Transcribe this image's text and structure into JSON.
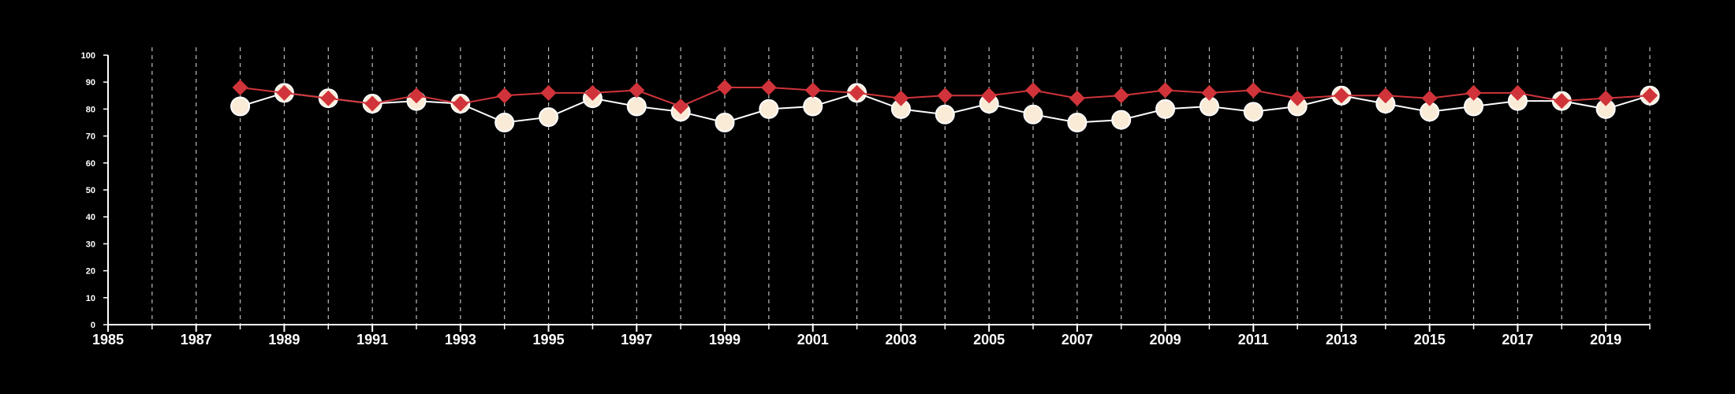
{
  "chart_data": {
    "type": "line",
    "title": "",
    "xlabel": "",
    "ylabel": "",
    "xlim": [
      1985,
      2020
    ],
    "ylim": [
      0,
      100
    ],
    "x_ticks": [
      1985,
      1987,
      1989,
      1991,
      1993,
      1995,
      1997,
      1999,
      2001,
      2003,
      2005,
      2007,
      2009,
      2011,
      2013,
      2015,
      2017,
      2019
    ],
    "y_ticks": [
      0,
      10,
      20,
      30,
      40,
      50,
      60,
      70,
      80,
      90,
      100
    ],
    "grid": "vertical dashed lines at every year",
    "legend": "none",
    "background": "#000000",
    "series": [
      {
        "color": "#d0343a",
        "marker": "diamond",
        "x": [
          1988,
          1989,
          1990,
          1991,
          1992,
          1993,
          1994,
          1995,
          1996,
          1997,
          1998,
          1999,
          2000,
          2001,
          2002,
          2003,
          2004,
          2005,
          2006,
          2007,
          2008,
          2009,
          2010,
          2011,
          2012,
          2013,
          2014,
          2015,
          2016,
          2017,
          2018,
          2019,
          2020
        ],
        "values": [
          88,
          86,
          84,
          82,
          85,
          82,
          85,
          86,
          86,
          87,
          81,
          88,
          88,
          87,
          86,
          84,
          85,
          85,
          87,
          84,
          85,
          87,
          86,
          87,
          84,
          85,
          85,
          84,
          86,
          86,
          83,
          84,
          85
        ]
      },
      {
        "color": "#faebd7",
        "marker": "circle",
        "x": [
          1988,
          1989,
          1990,
          1991,
          1992,
          1993,
          1994,
          1995,
          1996,
          1997,
          1998,
          1999,
          2000,
          2001,
          2002,
          2003,
          2004,
          2005,
          2006,
          2007,
          2008,
          2009,
          2010,
          2011,
          2012,
          2013,
          2014,
          2015,
          2016,
          2017,
          2018,
          2019,
          2020
        ],
        "values": [
          81,
          86,
          84,
          82,
          83,
          82,
          75,
          77,
          84,
          81,
          79,
          75,
          80,
          81,
          86,
          80,
          78,
          82,
          78,
          75,
          76,
          80,
          81,
          79,
          81,
          85,
          82,
          79,
          81,
          83,
          83,
          80,
          85
        ]
      }
    ]
  }
}
